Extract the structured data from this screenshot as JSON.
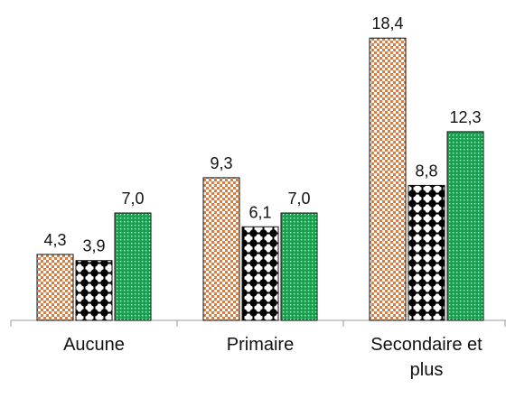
{
  "chart_data": {
    "type": "bar",
    "categories": [
      "Aucune",
      "Primaire",
      "Secondaire et plus"
    ],
    "series": [
      {
        "color": "#e07b39",
        "values": [
          4.3,
          9.3,
          18.4
        ],
        "value_labels": [
          "4,3",
          "9,3",
          "18,4"
        ]
      },
      {
        "color": "#000000",
        "values": [
          3.9,
          6.1,
          8.8
        ],
        "value_labels": [
          "3,9",
          "6,1",
          "8,8"
        ]
      },
      {
        "color": "#1e9e50",
        "values": [
          7.0,
          7.0,
          12.3
        ],
        "value_labels": [
          "7,0",
          "7,0",
          "12,3"
        ]
      }
    ],
    "ylim": [
      0,
      20
    ]
  }
}
